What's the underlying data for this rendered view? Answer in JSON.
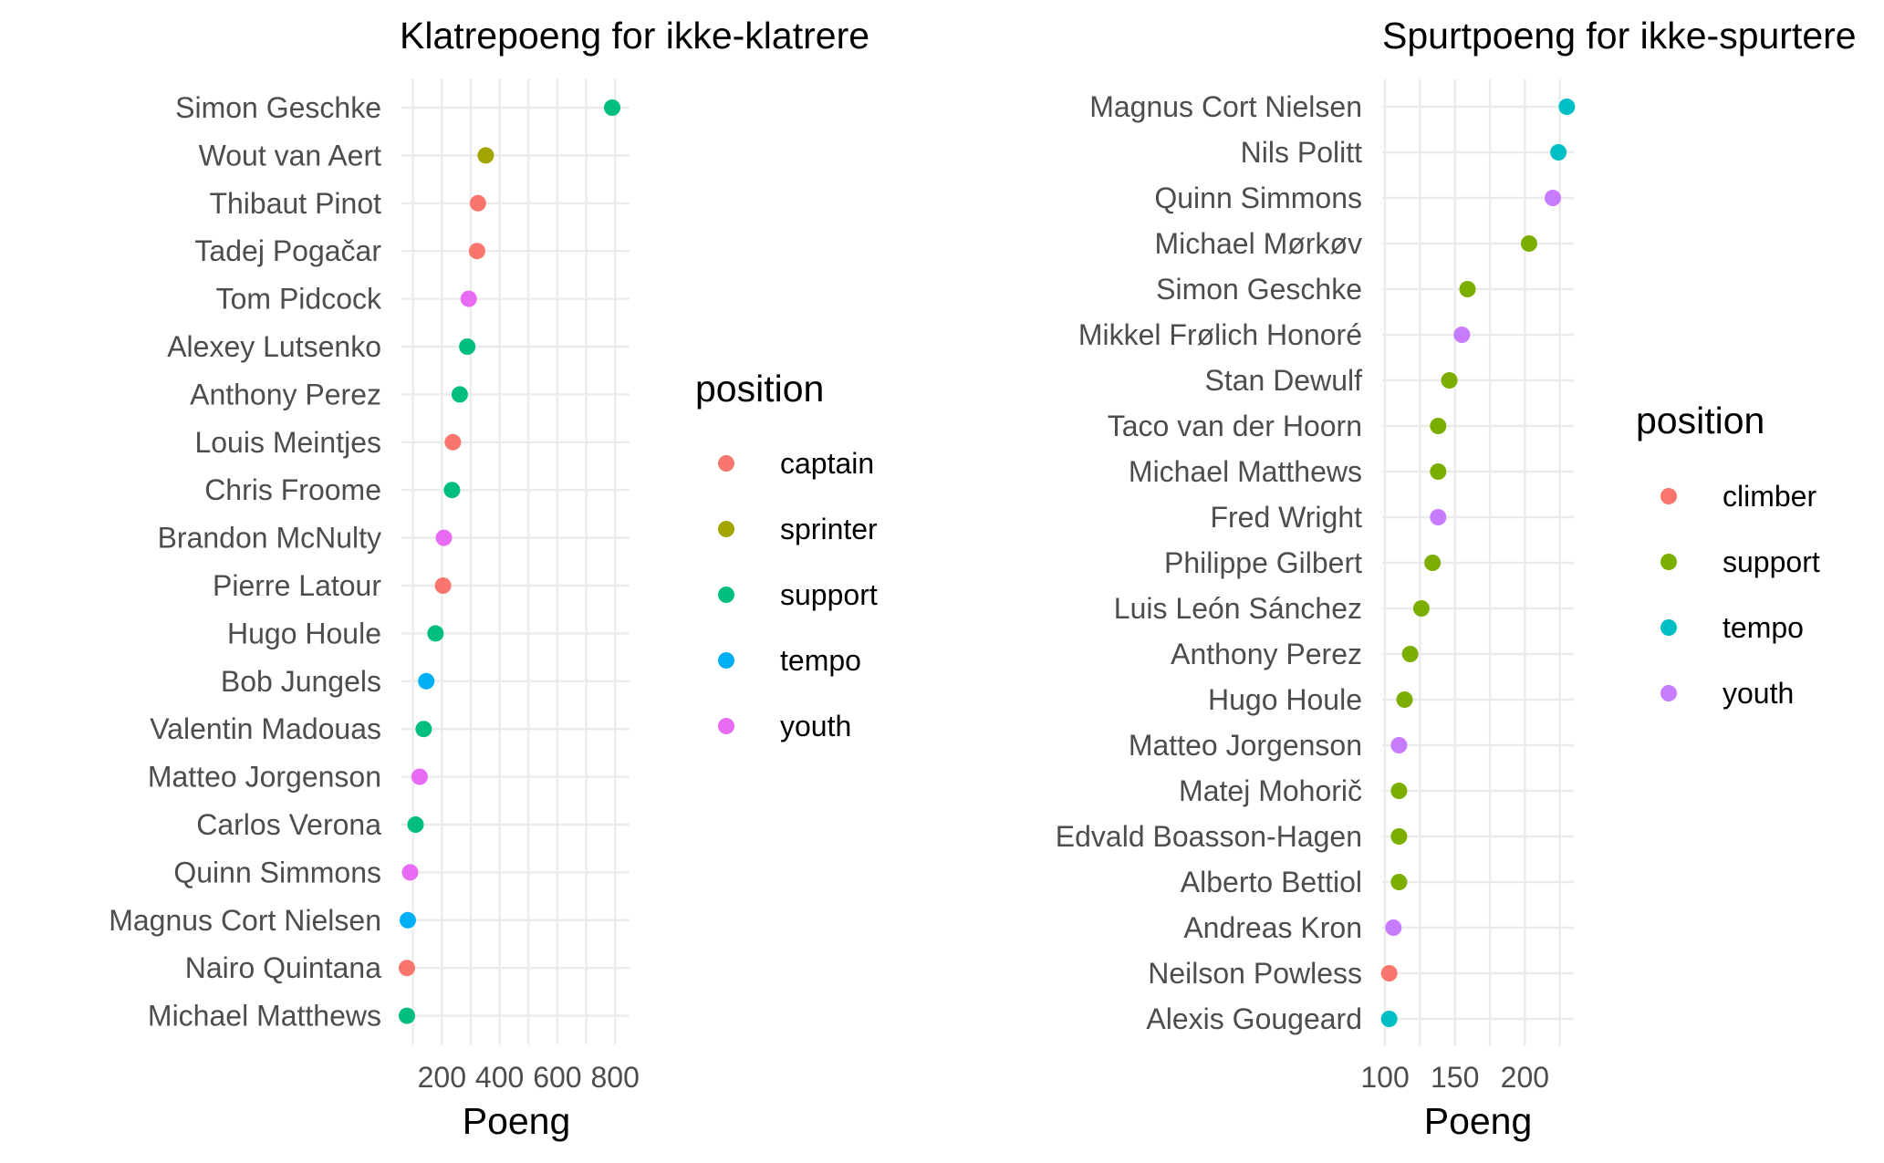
{
  "chart_data": [
    {
      "type": "scatter",
      "title": "Klatrepoeng for ikke-klatrere",
      "xlabel": "Poeng",
      "ylabel": "",
      "xlim": [
        60,
        850
      ],
      "xticks": [
        200,
        400,
        600,
        800
      ],
      "xtick_labels": [
        "200",
        "400",
        "600",
        "800"
      ],
      "grid": true,
      "legend": {
        "title": "position",
        "placement": "right",
        "entries": [
          {
            "label": "captain",
            "color": "#F8766D"
          },
          {
            "label": "sprinter",
            "color": "#A3A500"
          },
          {
            "label": "support",
            "color": "#00BF7D"
          },
          {
            "label": "tempo",
            "color": "#00B0F6"
          },
          {
            "label": "youth",
            "color": "#E76BF3"
          }
        ]
      },
      "points": [
        {
          "name": "Simon Geschke",
          "value": 790,
          "position": "support"
        },
        {
          "name": "Wout van Aert",
          "value": 352,
          "position": "sprinter"
        },
        {
          "name": "Thibaut Pinot",
          "value": 325,
          "position": "captain"
        },
        {
          "name": "Tadej Pogačar",
          "value": 322,
          "position": "captain"
        },
        {
          "name": "Tom Pidcock",
          "value": 293,
          "position": "youth"
        },
        {
          "name": "Alexey Lutsenko",
          "value": 288,
          "position": "support"
        },
        {
          "name": "Anthony Perez",
          "value": 262,
          "position": "support"
        },
        {
          "name": "Louis Meintjes",
          "value": 238,
          "position": "captain"
        },
        {
          "name": "Chris Froome",
          "value": 235,
          "position": "support"
        },
        {
          "name": "Brandon McNulty",
          "value": 207,
          "position": "youth"
        },
        {
          "name": "Pierre Latour",
          "value": 204,
          "position": "captain"
        },
        {
          "name": "Hugo Houle",
          "value": 178,
          "position": "support"
        },
        {
          "name": "Bob Jungels",
          "value": 146,
          "position": "tempo"
        },
        {
          "name": "Valentin Madouas",
          "value": 137,
          "position": "support"
        },
        {
          "name": "Matteo Jorgenson",
          "value": 123,
          "position": "youth"
        },
        {
          "name": "Carlos Verona",
          "value": 109,
          "position": "support"
        },
        {
          "name": "Quinn Simmons",
          "value": 90,
          "position": "youth"
        },
        {
          "name": "Magnus Cort Nielsen",
          "value": 82,
          "position": "tempo"
        },
        {
          "name": "Nairo Quintana",
          "value": 79,
          "position": "captain"
        },
        {
          "name": "Michael Matthews",
          "value": 79,
          "position": "support"
        }
      ]
    },
    {
      "type": "scatter",
      "title": "Spurtpoeng for ikke-spurtere",
      "xlabel": "Poeng",
      "ylabel": "",
      "xlim": [
        98,
        235
      ],
      "xticks": [
        100,
        150,
        200
      ],
      "xtick_labels": [
        "100",
        "150",
        "200"
      ],
      "grid": true,
      "legend": {
        "title": "position",
        "placement": "right",
        "entries": [
          {
            "label": "climber",
            "color": "#F8766D"
          },
          {
            "label": "support",
            "color": "#7CAE00"
          },
          {
            "label": "tempo",
            "color": "#00BFC4"
          },
          {
            "label": "youth",
            "color": "#C77CFF"
          }
        ]
      },
      "points": [
        {
          "name": "Magnus Cort Nielsen",
          "value": 230,
          "position": "tempo"
        },
        {
          "name": "Nils Politt",
          "value": 224,
          "position": "tempo"
        },
        {
          "name": "Quinn Simmons",
          "value": 220,
          "position": "youth"
        },
        {
          "name": "Michael Mørkøv",
          "value": 203,
          "position": "support"
        },
        {
          "name": "Simon Geschke",
          "value": 159,
          "position": "support"
        },
        {
          "name": "Mikkel Frølich Honoré",
          "value": 155,
          "position": "youth"
        },
        {
          "name": "Stan Dewulf",
          "value": 146,
          "position": "support"
        },
        {
          "name": "Taco van der Hoorn",
          "value": 138,
          "position": "support"
        },
        {
          "name": "Michael Matthews",
          "value": 138,
          "position": "support"
        },
        {
          "name": "Fred Wright",
          "value": 138,
          "position": "youth"
        },
        {
          "name": "Philippe Gilbert",
          "value": 134,
          "position": "support"
        },
        {
          "name": "Luis León Sánchez",
          "value": 126,
          "position": "support"
        },
        {
          "name": "Anthony Perez",
          "value": 118,
          "position": "support"
        },
        {
          "name": "Hugo Houle",
          "value": 114,
          "position": "support"
        },
        {
          "name": "Matteo Jorgenson",
          "value": 110,
          "position": "youth"
        },
        {
          "name": "Matej Mohorič",
          "value": 110,
          "position": "support"
        },
        {
          "name": "Edvald Boasson-Hagen",
          "value": 110,
          "position": "support"
        },
        {
          "name": "Alberto Bettiol",
          "value": 110,
          "position": "support"
        },
        {
          "name": "Andreas Kron",
          "value": 106,
          "position": "youth"
        },
        {
          "name": "Neilson Powless",
          "value": 103,
          "position": "climber"
        },
        {
          "name": "Alexis Gougeard",
          "value": 103,
          "position": "tempo"
        }
      ]
    }
  ]
}
